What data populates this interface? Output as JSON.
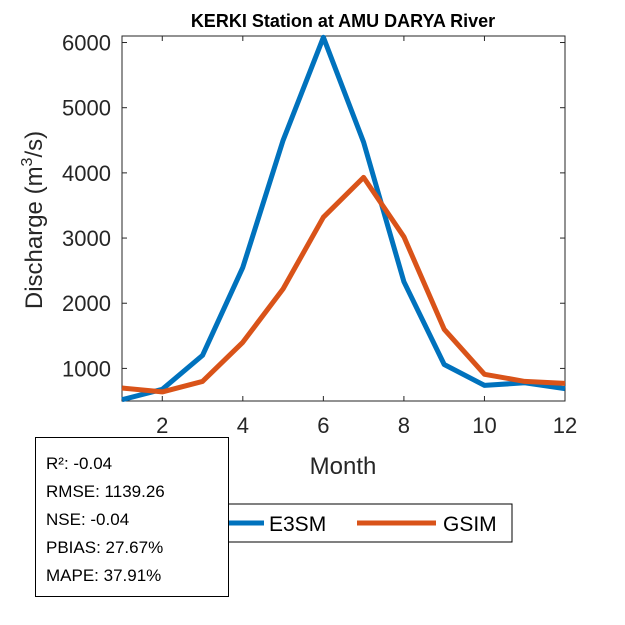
{
  "chart_data": {
    "type": "line",
    "title": "KERKI  Station at  AMU DARYA  River",
    "xlabel": "Month",
    "ylabel_main": "Discharge (m",
    "ylabel_sup": "3",
    "ylabel_tail": "/s)",
    "xlim": [
      1,
      12
    ],
    "ylim": [
      500,
      6100
    ],
    "xticks": [
      "2",
      "4",
      "6",
      "8",
      "10",
      "12"
    ],
    "yticks": [
      "1000",
      "2000",
      "3000",
      "4000",
      "5000",
      "6000"
    ],
    "x": [
      1,
      2,
      3,
      4,
      5,
      6,
      7,
      8,
      9,
      10,
      11,
      12
    ],
    "series": [
      {
        "name": "E3SM",
        "color": "#0072BD",
        "values": [
          520,
          680,
          1200,
          2550,
          4500,
          6080,
          4470,
          2330,
          1060,
          740,
          780,
          690
        ]
      },
      {
        "name": "GSIM",
        "color": "#D95319",
        "values": [
          700,
          640,
          800,
          1400,
          2220,
          3320,
          3930,
          3020,
          1600,
          910,
          800,
          770
        ]
      }
    ]
  },
  "stats": {
    "r2": "R²: -0.04",
    "rmse": "RMSE: 1139.26",
    "nse": "NSE: -0.04",
    "pbias": "PBIAS: 27.67%",
    "mape": "MAPE: 37.91%"
  }
}
